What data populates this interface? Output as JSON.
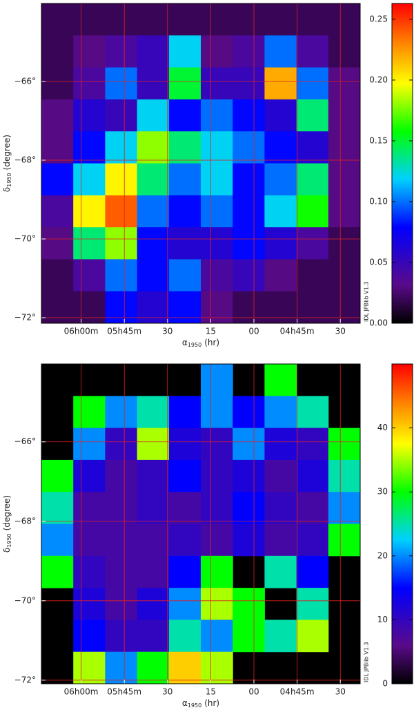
{
  "chart_data": [
    {
      "type": "heatmap",
      "y_label": {
        "symbol": "δ",
        "sub": "1950",
        "unit": "(degree)"
      },
      "x_label": {
        "symbol": "α",
        "sub": "1950",
        "unit": "(hr)"
      },
      "xlim": [
        6.23,
        4.385
      ],
      "ylim": [
        -72.14,
        -64.02
      ],
      "xticks": [
        {
          "value": 6.0,
          "label": "06h00m"
        },
        {
          "value": 5.75,
          "label": "05h45m"
        },
        {
          "value": 5.5,
          "label": "30"
        },
        {
          "value": 5.25,
          "label": "15"
        },
        {
          "value": 5.0,
          "label": "00"
        },
        {
          "value": 4.75,
          "label": "04h45m"
        },
        {
          "value": 4.5,
          "label": "30"
        }
      ],
      "yticks": [
        {
          "value": -66,
          "label": "−66°"
        },
        {
          "value": -68,
          "label": "−68°"
        },
        {
          "value": -70,
          "label": "−70°"
        },
        {
          "value": -72,
          "label": "−72°"
        }
      ],
      "grid": true,
      "grid_color": "#e02020",
      "colorbar": {
        "lim": [
          0,
          0.263
        ],
        "ticks": [
          {
            "value": 0,
            "label": "0.00"
          },
          0.05,
          {
            "value": 0.1,
            "label": "0.10"
          },
          0.15,
          {
            "value": 0.2,
            "label": "0.20"
          },
          0.25
        ]
      },
      "credit": "IDL JPBlib V1.3",
      "z": [
        [
          0.02,
          0.02,
          0.02,
          0.02,
          0.02,
          0.02,
          0.02,
          0.02,
          0.02,
          0.02
        ],
        [
          0.02,
          0.03,
          0.04,
          0.05,
          0.12,
          0.03,
          0.04,
          0.1,
          0.04,
          0.02
        ],
        [
          0.02,
          0.04,
          0.1,
          0.05,
          0.15,
          0.05,
          0.05,
          0.22,
          0.1,
          0.03
        ],
        [
          0.03,
          0.06,
          0.05,
          0.12,
          0.08,
          0.1,
          0.08,
          0.06,
          0.14,
          0.03
        ],
        [
          0.03,
          0.08,
          0.12,
          0.18,
          0.14,
          0.12,
          0.1,
          0.08,
          0.06,
          0.03
        ],
        [
          0.08,
          0.12,
          0.2,
          0.14,
          0.1,
          0.12,
          0.08,
          0.1,
          0.14,
          0.03
        ],
        [
          0.04,
          0.2,
          0.24,
          0.1,
          0.08,
          0.1,
          0.08,
          0.12,
          0.16,
          0.03
        ],
        [
          0.03,
          0.14,
          0.18,
          0.08,
          0.06,
          0.06,
          0.08,
          0.06,
          0.04,
          0.02
        ],
        [
          0.02,
          0.04,
          0.1,
          0.08,
          0.1,
          0.04,
          0.05,
          0.03,
          0.02,
          0.02
        ],
        [
          0.02,
          0.02,
          0.08,
          0.06,
          0.08,
          0.03,
          0.02,
          0.02,
          0.02,
          0.02
        ]
      ]
    },
    {
      "type": "heatmap",
      "y_label": {
        "symbol": "δ",
        "sub": "1950",
        "unit": "(degree)"
      },
      "x_label": {
        "symbol": "α",
        "sub": "1950",
        "unit": "(hr)"
      },
      "xlim": [
        6.23,
        4.385
      ],
      "ylim": [
        -72.09,
        -64.04
      ],
      "xticks": [
        {
          "value": 6.0,
          "label": "06h00m"
        },
        {
          "value": 5.75,
          "label": "05h45m"
        },
        {
          "value": 5.5,
          "label": "30"
        },
        {
          "value": 5.25,
          "label": "15"
        },
        {
          "value": 5.0,
          "label": "00"
        },
        {
          "value": 4.75,
          "label": "04h45m"
        },
        {
          "value": 4.5,
          "label": "30"
        }
      ],
      "yticks": [
        {
          "value": -66,
          "label": "−66°"
        },
        {
          "value": -68,
          "label": "−68°"
        },
        {
          "value": -70,
          "label": "−70°"
        },
        {
          "value": -72,
          "label": "−72°"
        }
      ],
      "grid": true,
      "grid_color": "#e02020",
      "colorbar": {
        "lim": [
          0,
          50
        ],
        "ticks": [
          0,
          10,
          20,
          30,
          40
        ]
      },
      "credit": "IDL JPBlib V1.3",
      "z": [
        [
          null,
          null,
          null,
          null,
          null,
          20,
          null,
          30,
          null,
          null
        ],
        [
          null,
          30,
          20,
          25,
          15,
          20,
          15,
          20,
          25,
          null
        ],
        [
          null,
          20,
          10,
          35,
          12,
          10,
          20,
          12,
          10,
          30
        ],
        [
          30,
          12,
          8,
          10,
          15,
          10,
          12,
          8,
          12,
          25
        ],
        [
          25,
          8,
          8,
          10,
          8,
          10,
          15,
          10,
          8,
          20
        ],
        [
          20,
          8,
          8,
          8,
          10,
          8,
          12,
          8,
          10,
          30
        ],
        [
          30,
          10,
          8,
          8,
          15,
          30,
          null,
          25,
          15,
          null
        ],
        [
          null,
          12,
          8,
          12,
          20,
          35,
          30,
          null,
          25,
          null
        ],
        [
          null,
          15,
          10,
          10,
          25,
          20,
          30,
          25,
          35,
          null
        ],
        [
          null,
          35,
          20,
          30,
          40,
          35,
          null,
          null,
          null,
          null
        ]
      ]
    }
  ]
}
